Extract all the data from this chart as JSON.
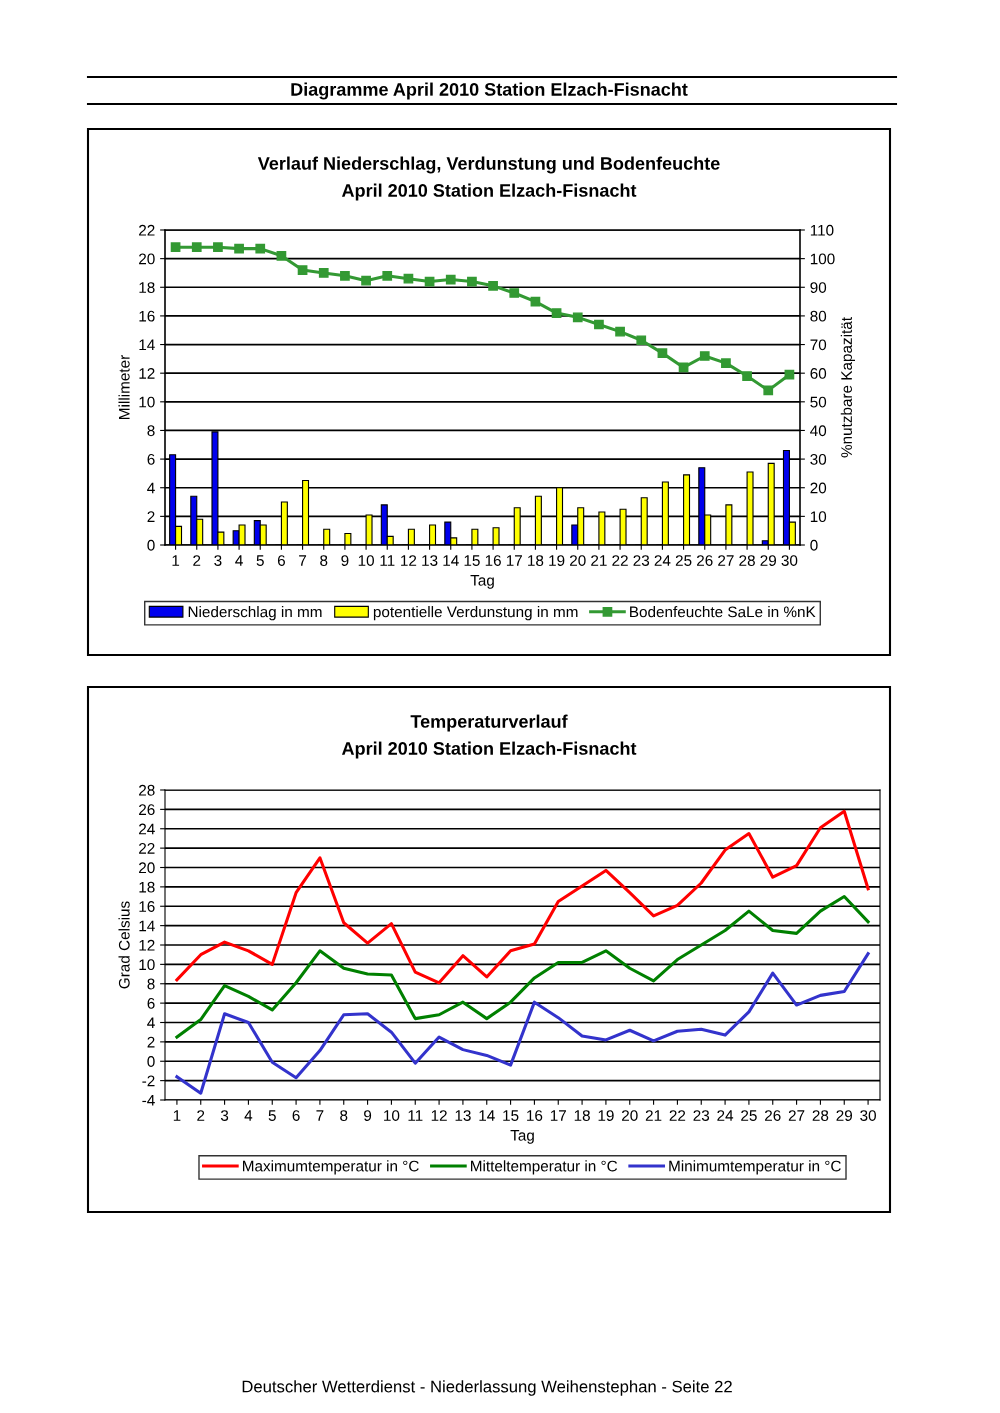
{
  "chart_data": [
    {
      "type": "bar",
      "title": "Verlauf Niederschlag, Verdunstung und Bodenfeuchte",
      "subtitle": "April 2010 Station Elzach-Fisnacht",
      "xlabel": "Tag",
      "ylabel": "Millimeter",
      "y2label": "%nutzbare Kapazität",
      "annotations": [
        "Diagramme April 2010 Station Elzach-Fisnacht"
      ],
      "categories": [
        "1",
        "2",
        "3",
        "4",
        "5",
        "6",
        "7",
        "8",
        "9",
        "10",
        "11",
        "12",
        "13",
        "14",
        "15",
        "16",
        "17",
        "18",
        "19",
        "20",
        "21",
        "22",
        "23",
        "24",
        "25",
        "26",
        "27",
        "28",
        "29",
        "30"
      ],
      "series": [
        {
          "name": "Niederschlag in mm",
          "color": "#0000ee",
          "values": [
            6.3,
            3.4,
            7.9,
            1.0,
            1.7,
            0,
            0,
            0,
            0,
            0,
            2.8,
            0,
            0,
            1.6,
            0,
            0,
            0,
            0,
            0,
            1.4,
            0,
            0,
            0,
            0,
            0,
            5.4,
            0,
            0,
            0.3,
            6.6
          ]
        },
        {
          "name": "potentielle Verdunstung in mm",
          "color": "#ffff00",
          "values": [
            1.3,
            1.8,
            0.9,
            1.4,
            1.4,
            3.0,
            4.5,
            1.1,
            0.8,
            2.1,
            0.6,
            1.1,
            1.4,
            0.5,
            1.1,
            1.2,
            2.6,
            3.4,
            4.0,
            2.6,
            2.3,
            2.5,
            3.3,
            4.4,
            4.9,
            2.1,
            2.8,
            5.1,
            5.7,
            1.6
          ]
        },
        {
          "name": "Bodenfeuchte SaLe in %nK",
          "color": "#339933",
          "type": "line",
          "axis": "y2",
          "marker": "square",
          "values": [
            104,
            104,
            104,
            103.5,
            103.5,
            101,
            96,
            95,
            94,
            92.3,
            94,
            93,
            92,
            92.7,
            92,
            90.5,
            88,
            85,
            81,
            79.5,
            77,
            74.5,
            71.5,
            67,
            62,
            66,
            63.5,
            59,
            54,
            59.5
          ]
        }
      ],
      "ylim": [
        0,
        22
      ],
      "yticks": [
        0,
        2,
        4,
        6,
        8,
        10,
        12,
        14,
        16,
        18,
        20,
        22
      ],
      "y2lim": [
        0,
        110
      ],
      "y2ticks": [
        0,
        10,
        20,
        30,
        40,
        50,
        60,
        70,
        80,
        90,
        100,
        110
      ],
      "grid": "y",
      "legend": "bottom"
    },
    {
      "type": "line",
      "title": "Temperaturverlauf",
      "subtitle": "April 2010 Station Elzach-Fisnacht",
      "xlabel": "Tag",
      "ylabel": "Grad Celsius",
      "annotations": [
        "Deutscher Wetterdienst - Niederlassung Weihenstephan - Seite 22"
      ],
      "categories": [
        "1",
        "2",
        "3",
        "4",
        "5",
        "6",
        "7",
        "8",
        "9",
        "10",
        "11",
        "12",
        "13",
        "14",
        "15",
        "16",
        "17",
        "18",
        "19",
        "20",
        "21",
        "22",
        "23",
        "24",
        "25",
        "26",
        "27",
        "28",
        "29",
        "30"
      ],
      "series": [
        {
          "name": "Maximumtemperatur in °C",
          "color": "#ff0000",
          "values": [
            8.4,
            11.0,
            12.3,
            11.4,
            10.0,
            17.4,
            21.0,
            14.3,
            12.2,
            14.2,
            9.2,
            8.1,
            10.9,
            8.7,
            11.4,
            12.1,
            16.5,
            18.1,
            19.7,
            17.4,
            15.0,
            16.1,
            18.4,
            21.8,
            23.5,
            19.0,
            20.2,
            24.1,
            25.8,
            17.8
          ]
        },
        {
          "name": "Mitteltemperatur in °C",
          "color": "#008000",
          "values": [
            2.5,
            4.3,
            7.8,
            6.7,
            5.3,
            8.1,
            11.4,
            9.6,
            9.0,
            8.9,
            4.4,
            4.8,
            6.1,
            4.4,
            6.1,
            8.6,
            10.2,
            10.2,
            11.4,
            9.6,
            8.3,
            10.5,
            12.0,
            13.5,
            15.5,
            13.5,
            13.2,
            15.5,
            17.0,
            14.4
          ]
        },
        {
          "name": "Minimumtemperatur in °C",
          "color": "#3333cc",
          "values": [
            -1.6,
            -3.3,
            4.9,
            4.0,
            -0.1,
            -1.7,
            1.1,
            4.8,
            4.9,
            3.0,
            -0.2,
            2.5,
            1.2,
            0.6,
            -0.4,
            6.1,
            4.5,
            2.6,
            2.2,
            3.2,
            2.1,
            3.1,
            3.3,
            2.7,
            5.1,
            9.1,
            5.8,
            6.8,
            7.2,
            11.1
          ]
        }
      ],
      "ylim": [
        -4,
        28
      ],
      "yticks": [
        -4,
        -2,
        0,
        2,
        4,
        6,
        8,
        10,
        12,
        14,
        16,
        18,
        20,
        22,
        24,
        26,
        28
      ],
      "grid": "y",
      "legend": "bottom"
    }
  ]
}
